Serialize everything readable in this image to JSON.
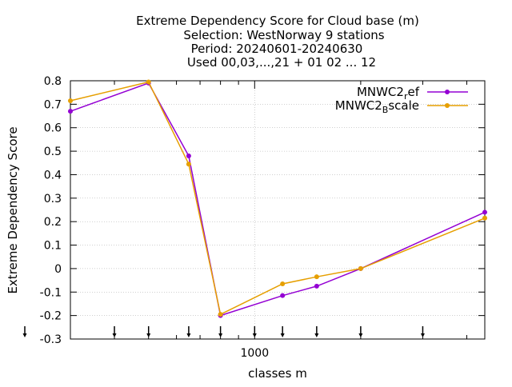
{
  "chart_data": {
    "type": "line",
    "title_lines": [
      "Extreme Dependency Score  for Cloud base (m)",
      "Selection: WestNorway      9 stations",
      "Period: 20240601-20240630",
      "Used 00,03,...,21 + 01 02 ... 12"
    ],
    "xlabel": "classes m",
    "ylabel": "Extreme Dependency Score",
    "x_scale": "log",
    "xlim": [
      300,
      4500
    ],
    "ylim": [
      -0.3,
      0.8
    ],
    "y_ticks": [
      -0.3,
      -0.2,
      -0.1,
      0,
      0.1,
      0.2,
      0.3,
      0.4,
      0.5,
      0.6,
      0.7,
      0.8
    ],
    "y_tick_labels": [
      "-0.3",
      "-0.2",
      "-0.1",
      "0",
      "0.1",
      "0.2",
      "0.3",
      "0.4",
      "0.5",
      "0.6",
      "0.7",
      "0.8"
    ],
    "x_major_ticks": [
      1000
    ],
    "x_major_tick_labels": [
      "1000"
    ],
    "x_minor_ticks": [
      400,
      500,
      600,
      700,
      800,
      900,
      2000,
      3000,
      4000
    ],
    "class_markers_x": [
      300,
      400,
      500,
      650,
      800,
      1000,
      1200,
      1500,
      2000,
      3000
    ],
    "grid": true,
    "legend_position": "top-right",
    "series": [
      {
        "name": "MNWC2_ref",
        "legend_base": "MNWC2",
        "legend_sub": "r",
        "legend_rest": "ef",
        "color": "#9400d3",
        "x": [
          300,
          500,
          650,
          800,
          1200,
          1500,
          2000,
          4500
        ],
        "values": [
          0.67,
          0.79,
          0.48,
          -0.2,
          -0.115,
          -0.075,
          0.0,
          0.24
        ]
      },
      {
        "name": "MNWC2_Bscale",
        "legend_base": "MNWC2",
        "legend_sub": "B",
        "legend_rest": "scale",
        "color": "#e69f00",
        "x": [
          300,
          500,
          650,
          800,
          1200,
          1500,
          2000,
          4500
        ],
        "values": [
          0.715,
          0.795,
          0.445,
          -0.195,
          -0.065,
          -0.035,
          0.0,
          0.215
        ]
      }
    ]
  }
}
